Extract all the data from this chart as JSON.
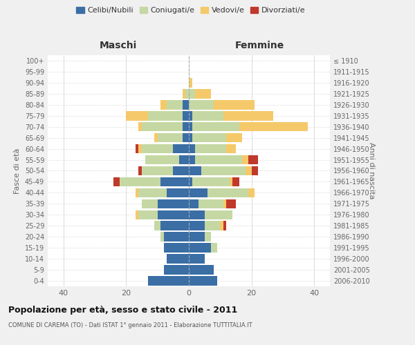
{
  "age_groups": [
    "0-4",
    "5-9",
    "10-14",
    "15-19",
    "20-24",
    "25-29",
    "30-34",
    "35-39",
    "40-44",
    "45-49",
    "50-54",
    "55-59",
    "60-64",
    "65-69",
    "70-74",
    "75-79",
    "80-84",
    "85-89",
    "90-94",
    "95-99",
    "100+"
  ],
  "birth_years": [
    "2006-2010",
    "2001-2005",
    "1996-2000",
    "1991-1995",
    "1986-1990",
    "1981-1985",
    "1976-1980",
    "1971-1975",
    "1966-1970",
    "1961-1965",
    "1956-1960",
    "1951-1955",
    "1946-1950",
    "1941-1945",
    "1936-1940",
    "1931-1935",
    "1926-1930",
    "1921-1925",
    "1916-1920",
    "1911-1915",
    "≤ 1910"
  ],
  "colors": {
    "celibe": "#3a6ea5",
    "coniugato": "#c5d8a4",
    "vedovo": "#f5c96a",
    "divorziato": "#c0392b"
  },
  "maschi": {
    "celibe": [
      13,
      8,
      7,
      8,
      8,
      9,
      10,
      10,
      7,
      9,
      5,
      3,
      5,
      2,
      2,
      2,
      2,
      0,
      0,
      0,
      0
    ],
    "coniugato": [
      0,
      0,
      0,
      0,
      1,
      2,
      6,
      5,
      9,
      13,
      10,
      11,
      10,
      8,
      13,
      11,
      5,
      1,
      0,
      0,
      0
    ],
    "vedovo": [
      0,
      0,
      0,
      0,
      0,
      0,
      1,
      0,
      1,
      0,
      0,
      0,
      1,
      1,
      1,
      7,
      2,
      1,
      0,
      0,
      0
    ],
    "divorziato": [
      0,
      0,
      0,
      0,
      0,
      0,
      0,
      0,
      0,
      2,
      1,
      0,
      1,
      0,
      0,
      0,
      0,
      0,
      0,
      0,
      0
    ]
  },
  "femmine": {
    "nubile": [
      9,
      8,
      5,
      7,
      5,
      5,
      5,
      3,
      6,
      1,
      4,
      2,
      2,
      1,
      1,
      1,
      0,
      0,
      0,
      0,
      0
    ],
    "coniugata": [
      0,
      0,
      0,
      2,
      2,
      5,
      9,
      8,
      13,
      12,
      14,
      15,
      10,
      11,
      15,
      10,
      8,
      2,
      0,
      0,
      0
    ],
    "vedova": [
      0,
      0,
      0,
      0,
      0,
      1,
      0,
      1,
      2,
      1,
      2,
      2,
      3,
      5,
      22,
      16,
      13,
      5,
      1,
      0,
      0
    ],
    "divorziata": [
      0,
      0,
      0,
      0,
      0,
      1,
      0,
      3,
      0,
      2,
      2,
      3,
      0,
      0,
      0,
      0,
      0,
      0,
      0,
      0,
      0
    ]
  },
  "xlim": [
    -45,
    45
  ],
  "xticks": [
    -40,
    -20,
    0,
    20,
    40
  ],
  "xticklabels": [
    "40",
    "20",
    "0",
    "20",
    "40"
  ],
  "title": "Popolazione per età, sesso e stato civile - 2011",
  "subtitle": "COMUNE DI CAREMA (TO) - Dati ISTAT 1° gennaio 2011 - Elaborazione TUTTITALIA.IT",
  "ylabel_left": "Fasce di età",
  "ylabel_right": "Anni di nascita",
  "header_left": "Maschi",
  "header_right": "Femmine",
  "bg_color": "#f0f0f0",
  "plot_bg_color": "#ffffff",
  "bar_height": 0.85
}
